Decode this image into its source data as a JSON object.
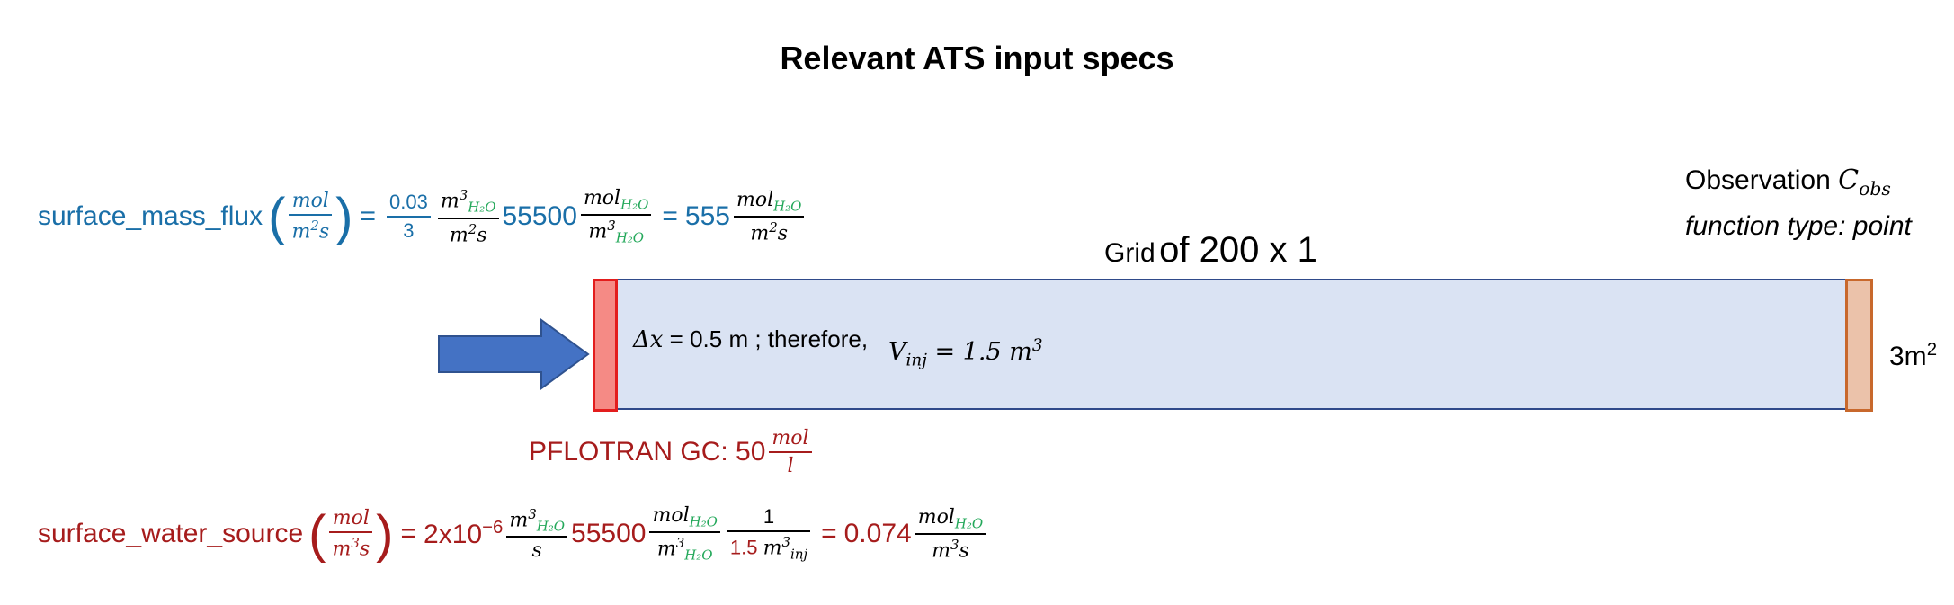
{
  "title": "Relevant ATS input specs",
  "surface_mass_flux": {
    "label": "surface_mass_flux",
    "unit_num": "mol",
    "unit_den": "m",
    "unit_den_sup": "2",
    "unit_den_tail": "s",
    "eq1": "=",
    "f1_num": "0.03",
    "f1_den": "3",
    "f2_num": "m",
    "f2_num_sup": "3",
    "f2_num_sub": "H₂O",
    "f2_den": "m",
    "f2_den_sup": "2",
    "f2_den_tail": "s",
    "coef": "55500",
    "f3_num": "mol",
    "f3_num_sub": "H₂O",
    "f3_den": "m",
    "f3_den_sup": "3",
    "f3_den_sub": "H₂O",
    "eq2": "=",
    "result": "555",
    "f4_num": "mol",
    "f4_num_sub": "H₂O",
    "f4_den": "m",
    "f4_den_sup": "2",
    "f4_den_tail": "s"
  },
  "observation": {
    "line1_text": "Observation",
    "line1_symbol": "C",
    "line1_sub": "obs",
    "line2": "function type: point"
  },
  "grid_label": {
    "small": "Grid",
    "large": "of 200 x 1"
  },
  "grid_text": {
    "delta": "Δx",
    "part1": " = 0.5 m ; therefore,",
    "v": "V",
    "v_sub": "inj",
    "v_rest": " = 1.5 m",
    "v_sup": "3"
  },
  "area_label": {
    "text": "3m",
    "sup": "2"
  },
  "pflotran": {
    "text": "PFLOTRAN GC: 50",
    "num": "mol",
    "den": "l"
  },
  "surface_water_source": {
    "label": "surface_water_source",
    "unit_num": "mol",
    "unit_den": "m",
    "unit_den_sup": "3",
    "unit_den_tail": "s",
    "eq1": "=",
    "coef1": "2x10",
    "coef1_sup": "−6",
    "f1_num": "m",
    "f1_num_sup": "3",
    "f1_num_sub": "H₂O",
    "f1_den": "s",
    "coef2": "55500",
    "f2_num": "mol",
    "f2_num_sub": "H₂O",
    "f2_den": "m",
    "f2_den_sup": "3",
    "f2_den_sub": "H₂O",
    "f3_num": "1",
    "f3_den_red": "1.5",
    "f3_den": "m",
    "f3_den_sup": "3",
    "f3_den_sub": "inj",
    "eq2": "=",
    "result": "0.074",
    "f4_num": "mol",
    "f4_num_sub": "H₂O",
    "f4_den": "m",
    "f4_den_sup": "3",
    "f4_den_tail": "s"
  },
  "colors": {
    "blue_text": "#1a6fa8",
    "red_text": "#a61c1c",
    "green_sub": "#23a85a",
    "arrow": "#4472c4",
    "grid_fill": "#dae3f3",
    "injection_fill": "#f58a85",
    "observation_fill": "#ebc2aa"
  }
}
